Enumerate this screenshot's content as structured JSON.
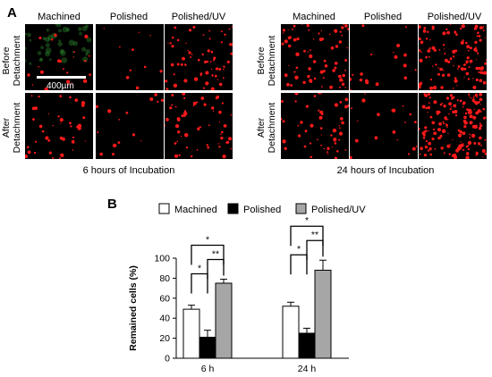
{
  "panels": {
    "a_letter": "A",
    "b_letter": "B"
  },
  "left_group": {
    "columns": [
      "Machined",
      "Polished",
      "Polished/UV"
    ],
    "rows": [
      [
        "Before",
        "Detachment"
      ],
      [
        "After",
        "Detachment"
      ]
    ],
    "caption": "6 hours of Incubation",
    "scale_label": "400µm",
    "density": [
      [
        22,
        10,
        65
      ],
      [
        40,
        16,
        55
      ]
    ]
  },
  "right_group": {
    "columns": [
      "Machined",
      "Polished",
      "Polished/UV"
    ],
    "rows": [
      [
        "Before",
        "Detachment"
      ],
      [
        "After",
        "Detachment"
      ]
    ],
    "caption": "24 hours of Incubation",
    "density": [
      [
        70,
        18,
        120
      ],
      [
        55,
        20,
        160
      ]
    ]
  },
  "colors": {
    "cell_red": "#ff1a1a",
    "cell_green": "#3aa83a",
    "bar_machined": "#ffffff",
    "bar_polished": "#000000",
    "bar_polished_uv": "#a6a6a6"
  },
  "chart_data": {
    "type": "bar",
    "categories": [
      "6 h",
      "24 h"
    ],
    "series": [
      {
        "name": "Machined",
        "values": [
          49,
          52
        ],
        "errors": [
          4,
          4
        ]
      },
      {
        "name": "Polished",
        "values": [
          21,
          25
        ],
        "errors": [
          7,
          5
        ]
      },
      {
        "name": "Polished/UV",
        "values": [
          75,
          88
        ],
        "errors": [
          4,
          10
        ]
      }
    ],
    "ylabel": "Remained cells (%)",
    "xlabel": "",
    "ylim": [
      0,
      100
    ],
    "yticks": [
      0,
      20,
      40,
      60,
      80,
      100
    ],
    "legend_position": "top",
    "significance": [
      {
        "category": 0,
        "from": 0,
        "to": 1,
        "label": "*"
      },
      {
        "category": 0,
        "from": 1,
        "to": 2,
        "label": "**"
      },
      {
        "category": 0,
        "from": 0,
        "to": 2,
        "label": "*"
      },
      {
        "category": 1,
        "from": 0,
        "to": 1,
        "label": "*"
      },
      {
        "category": 1,
        "from": 1,
        "to": 2,
        "label": "**"
      },
      {
        "category": 1,
        "from": 0,
        "to": 2,
        "label": "*"
      }
    ]
  }
}
